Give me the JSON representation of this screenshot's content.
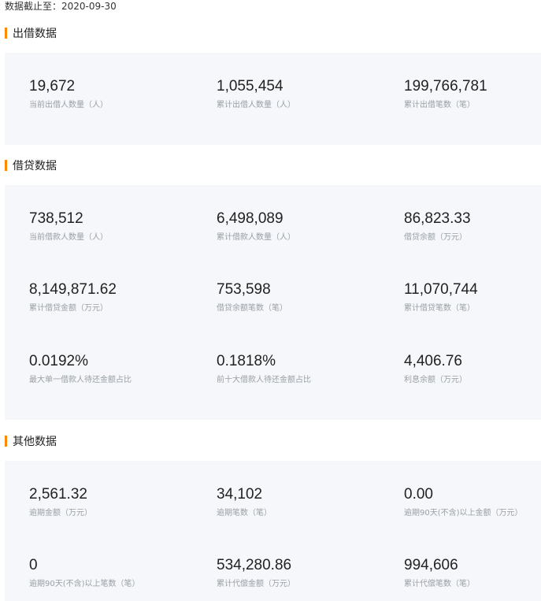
{
  "as_of": "数据截止至：2020-09-30",
  "sections": [
    {
      "title": "出借数据",
      "items": [
        {
          "value": "19,672",
          "label": "当前出借人数量（人）"
        },
        {
          "value": "1,055,454",
          "label": "累计出借人数量（人）"
        },
        {
          "value": "199,766,781",
          "label": "累计出借笔数（笔）"
        }
      ]
    },
    {
      "title": "借贷数据",
      "items": [
        {
          "value": "738,512",
          "label": "当前借款人数量（人）"
        },
        {
          "value": "6,498,089",
          "label": "累计借款人数量（人）"
        },
        {
          "value": "86,823.33",
          "label": "借贷余额（万元）"
        },
        {
          "value": "8,149,871.62",
          "label": "累计借贷金额（万元）"
        },
        {
          "value": "753,598",
          "label": "借贷余额笔数（笔）"
        },
        {
          "value": "11,070,744",
          "label": "累计借贷笔数（笔）"
        },
        {
          "value": "0.0192%",
          "label": "最大单一借款人待还金额占比"
        },
        {
          "value": "0.1818%",
          "label": "前十大借款人待还金额占比"
        },
        {
          "value": "4,406.76",
          "label": "利息余额（万元）"
        }
      ]
    },
    {
      "title": "其他数据",
      "items": [
        {
          "value": "2,561.32",
          "label": "逾期金额（万元）"
        },
        {
          "value": "34,102",
          "label": "逾期笔数（笔）"
        },
        {
          "value": "0.00",
          "label": "逾期90天(不含)以上金额（万元）"
        },
        {
          "value": "0",
          "label": "逾期90天(不含)以上笔数（笔）"
        },
        {
          "value": "534,280.86",
          "label": "累计代偿金额（万元）"
        },
        {
          "value": "994,606",
          "label": "累计代偿笔数（笔）"
        }
      ]
    }
  ],
  "accent_color": "#ff8a00"
}
